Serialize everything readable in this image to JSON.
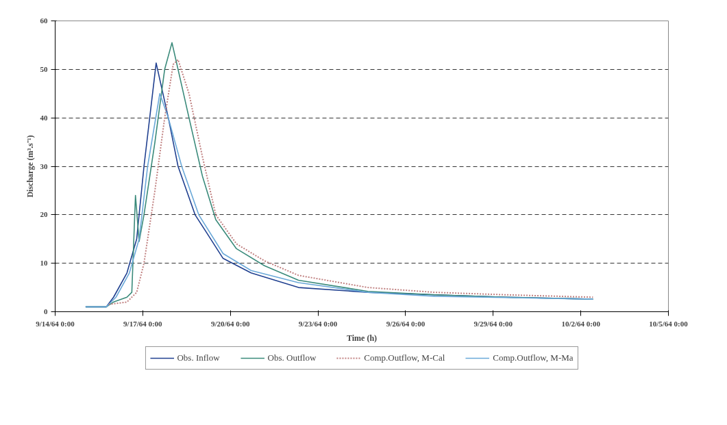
{
  "chart_data": {
    "type": "line",
    "xlabel": "Time (h)",
    "ylabel": "Discharge (m³.s⁻¹)",
    "xlim": [
      "1964-09-14",
      "1964-10-05"
    ],
    "xticks": [
      {
        "value": "1964-09-14",
        "label": "9/14/64 0:00"
      },
      {
        "value": "1964-09-17",
        "label": "9/17/64 0:00"
      },
      {
        "value": "1964-09-20",
        "label": "9/20/64 0:00"
      },
      {
        "value": "1964-09-23",
        "label": "9/23/64 0:00"
      },
      {
        "value": "1964-09-26",
        "label": "9/26/64 0:00"
      },
      {
        "value": "1964-09-29",
        "label": "9/29/64 0:00"
      },
      {
        "value": "1964-10-02",
        "label": "10/2/64 0:00"
      },
      {
        "value": "1964-10-05",
        "label": "10/5/64 0:00"
      }
    ],
    "ylim": [
      0,
      60
    ],
    "yticks": [
      0,
      10,
      20,
      30,
      40,
      50,
      60
    ],
    "grid": "y",
    "legend": "bottom",
    "series": [
      {
        "name": "Obs. Inflow",
        "color": "#1f3f8f",
        "line_style": "solid",
        "x": [
          "1964-09-15T01:00",
          "1964-09-15T18:00",
          "1964-09-16T00:00",
          "1964-09-16T11:00",
          "1964-09-16T19:00",
          "1964-09-17T01:00",
          "1964-09-17T11:00",
          "1964-09-17T21:00",
          "1964-09-18T05:00",
          "1964-09-18T19:00",
          "1964-09-19T04:00",
          "1964-09-19T18:00",
          "1964-09-20T17:00",
          "1964-09-22T08:00",
          "1964-09-24T17:00",
          "1964-09-27T00:00",
          "1964-09-29T10:00",
          "1964-10-02T10:00"
        ],
        "values": [
          1,
          1,
          3,
          8,
          15,
          30,
          51.3,
          40,
          30,
          20,
          16.5,
          11,
          8,
          5,
          4,
          3.5,
          3,
          2.6
        ]
      },
      {
        "name": "Obs. Outflow",
        "color": "#3a8a7a",
        "line_style": "solid",
        "x": [
          "1964-09-15T01:00",
          "1964-09-15T18:00",
          "1964-09-16T00:00",
          "1964-09-16T11:00",
          "1964-09-16T15:00",
          "1964-09-16T18:00",
          "1964-09-16T21:00",
          "1964-09-17T01:00",
          "1964-09-17T10:00",
          "1964-09-17T18:00",
          "1964-09-18T00:00",
          "1964-09-18T05:00",
          "1964-09-18T14:00",
          "1964-09-19T01:00",
          "1964-09-19T12:00",
          "1964-09-20T05:00",
          "1964-09-21T04:00",
          "1964-09-22T08:00",
          "1964-09-24T17:00",
          "1964-09-27T00:00",
          "1964-09-29T10:00",
          "1964-10-02T10:00"
        ],
        "values": [
          1,
          1,
          2,
          3,
          4,
          24,
          14.5,
          20,
          35,
          50,
          55.5,
          50,
          40,
          28,
          19,
          13,
          9.5,
          6.5,
          4.2,
          3.5,
          3,
          2.6
        ]
      },
      {
        "name": "Comp.Outflow, M-Cal",
        "color": "#c08080",
        "line_style": "dotted",
        "x": [
          "1964-09-15T20:00",
          "1964-09-16T11:00",
          "1964-09-16T19:00",
          "1964-09-17T01:00",
          "1964-09-17T10:00",
          "1964-09-17T18:00",
          "1964-09-18T01:00",
          "1964-09-18T05:00",
          "1964-09-18T14:00",
          "1964-09-19T01:00",
          "1964-09-19T12:00",
          "1964-09-20T05:00",
          "1964-09-21T04:00",
          "1964-09-22T08:00",
          "1964-09-24T17:00",
          "1964-09-27T00:00",
          "1964-09-29T10:00",
          "1964-10-02T10:00"
        ],
        "values": [
          1.5,
          2,
          4,
          10,
          25,
          40,
          51,
          52,
          45,
          32,
          20,
          14,
          10.5,
          7.5,
          5,
          4,
          3.5,
          3
        ]
      },
      {
        "name": "Comp.Outflow, M-Ma",
        "color": "#6aa8d8",
        "line_style": "solid",
        "x": [
          "1964-09-15T01:00",
          "1964-09-15T18:00",
          "1964-09-16T02:00",
          "1964-09-16T13:00",
          "1964-09-16T21:00",
          "1964-09-17T04:00",
          "1964-09-17T14:00",
          "1964-09-17T21:00",
          "1964-09-18T08:00",
          "1964-09-18T22:00",
          "1964-09-19T18:00",
          "1964-09-20T17:00",
          "1964-09-22T08:00",
          "1964-09-24T17:00",
          "1964-09-27T00:00",
          "1964-10-02T10:00"
        ],
        "values": [
          1,
          1,
          3,
          8,
          15,
          30,
          45,
          40,
          30,
          20,
          12,
          8.5,
          6,
          4,
          3.2,
          2.6
        ]
      }
    ]
  }
}
